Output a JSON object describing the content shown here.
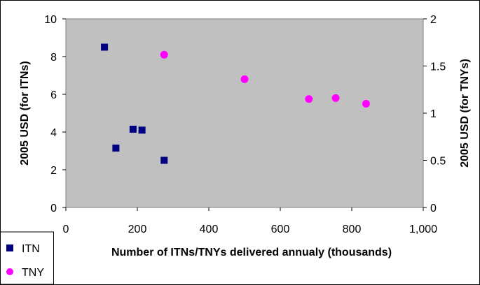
{
  "chart_data": {
    "type": "scatter",
    "title": "",
    "xlabel": "Number of ITNs/TNYs delivered annualy (thousands)",
    "ylabel_left": "2005 USD (for ITNs)",
    "ylabel_right": "2005 USD (for TNYs)",
    "xlim": [
      0,
      1000
    ],
    "ylim_left": [
      0,
      10
    ],
    "ylim_right": [
      0,
      2
    ],
    "x_ticks": [
      "0",
      "200",
      "400",
      "600",
      "800",
      "1,000"
    ],
    "y_left_ticks": [
      "0",
      "2",
      "4",
      "6",
      "8",
      "10"
    ],
    "y_right_ticks": [
      "0",
      "0.5",
      "1",
      "1.5",
      "2"
    ],
    "grid": false,
    "plot_background": "#c0c0c0",
    "legend_position": "bottom-left",
    "series": [
      {
        "name": "ITN",
        "axis": "left",
        "marker": "square",
        "color": "#000080",
        "points": [
          {
            "x": 108,
            "y": 8.5
          },
          {
            "x": 140,
            "y": 3.15
          },
          {
            "x": 188,
            "y": 4.15
          },
          {
            "x": 213,
            "y": 4.1
          },
          {
            "x": 275,
            "y": 2.5
          }
        ]
      },
      {
        "name": "TNY",
        "axis": "right",
        "marker": "circle",
        "color": "#ff00ff",
        "points": [
          {
            "x": 275,
            "y": 1.62
          },
          {
            "x": 500,
            "y": 1.36
          },
          {
            "x": 680,
            "y": 1.15
          },
          {
            "x": 755,
            "y": 1.16
          },
          {
            "x": 840,
            "y": 1.1
          }
        ]
      }
    ]
  }
}
